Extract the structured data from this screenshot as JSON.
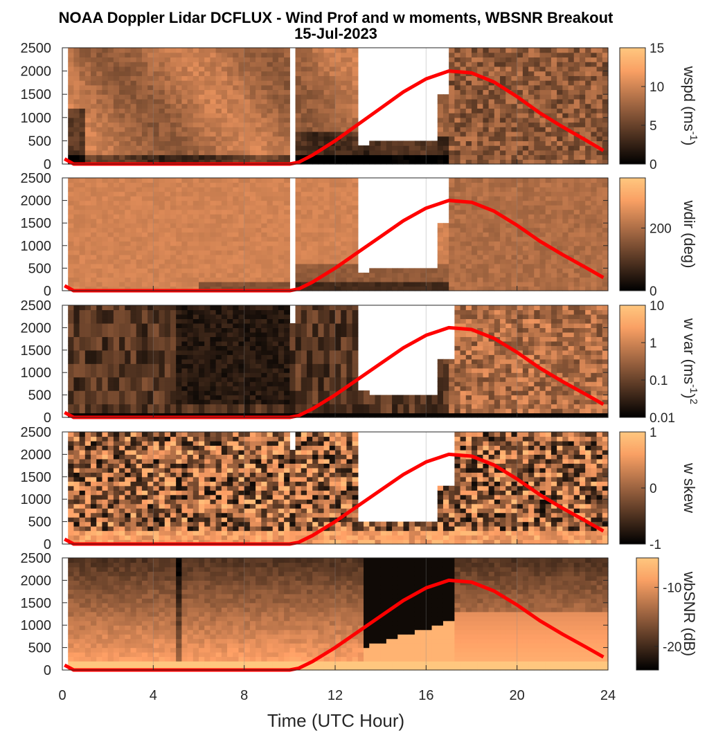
{
  "chart_data": {
    "type": "heatmap",
    "title": "NOAA Doppler Lidar DCFLUX - Wind Prof and w moments, WBSNR Breakout",
    "subtitle": "15-Jul-2023",
    "xlabel": "Time (UTC Hour)",
    "xlim": [
      0,
      24
    ],
    "xticks": [
      0,
      4,
      8,
      12,
      16,
      20,
      24
    ],
    "ylim": [
      0,
      2500
    ],
    "yticks": [
      0,
      500,
      1000,
      1500,
      2000,
      2500
    ],
    "grid": true,
    "colormap": "copper",
    "overlay_line": {
      "color": "#ff0000",
      "points": [
        [
          0.1,
          110
        ],
        [
          0.5,
          0
        ],
        [
          4,
          0
        ],
        [
          8,
          0
        ],
        [
          10,
          0
        ],
        [
          10.4,
          40
        ],
        [
          11,
          190
        ],
        [
          12,
          500
        ],
        [
          13,
          850
        ],
        [
          14,
          1200
        ],
        [
          15,
          1550
        ],
        [
          16,
          1830
        ],
        [
          17,
          2000
        ],
        [
          18,
          1960
        ],
        [
          19,
          1760
        ],
        [
          20,
          1450
        ],
        [
          21,
          1100
        ],
        [
          22,
          800
        ],
        [
          23,
          520
        ],
        [
          23.8,
          290
        ]
      ]
    },
    "panels": [
      {
        "id": "wspd",
        "colorbar_label": "wspd (ms-1)",
        "colorbar_label_base": "wspd (ms",
        "colorbar_label_sup": "-1",
        "colorbar_label_end": ")",
        "colorbar_ticks": [
          "0",
          "5",
          "10",
          "15"
        ],
        "colorbar_tick_values": [
          0,
          5,
          10,
          15
        ],
        "colorbar_range": [
          0,
          15
        ],
        "colorbar_scale": "linear",
        "blank_regions": [
          [
            10.0,
            10.3,
            0,
            2500
          ],
          [
            13.0,
            13.4,
            400,
            2500
          ],
          [
            13.4,
            16.4,
            550,
            2500
          ],
          [
            16.4,
            17.0,
            1500,
            2500
          ]
        ]
      },
      {
        "id": "wdir",
        "colorbar_label": "wdir (deg)",
        "colorbar_ticks": [
          "0",
          "200"
        ],
        "colorbar_tick_values": [
          0,
          200
        ],
        "colorbar_range": [
          0,
          360
        ],
        "colorbar_scale": "linear",
        "blank_regions": [
          [
            10.0,
            10.3,
            0,
            2500
          ],
          [
            13.0,
            13.4,
            400,
            2500
          ],
          [
            13.4,
            16.4,
            550,
            2500
          ],
          [
            16.4,
            17.0,
            1500,
            2500
          ]
        ]
      },
      {
        "id": "wvar",
        "colorbar_label": "w var (ms-1)2",
        "colorbar_label_base": "w var (ms",
        "colorbar_label_sup": "-1",
        "colorbar_label_end": ")",
        "colorbar_label_sup2": "2",
        "colorbar_ticks": [
          "0.01",
          "0.1",
          "1",
          "10"
        ],
        "colorbar_tick_values": [
          0.01,
          0.1,
          1,
          10
        ],
        "colorbar_range": [
          0.01,
          10
        ],
        "colorbar_scale": "log",
        "blank_regions": [
          [
            10.0,
            10.3,
            2100,
            2500
          ],
          [
            13.0,
            13.4,
            600,
            2500
          ],
          [
            13.4,
            16.4,
            500,
            2500
          ],
          [
            16.4,
            17.2,
            1300,
            2500
          ]
        ]
      },
      {
        "id": "wskew",
        "colorbar_label": "w skew",
        "colorbar_ticks": [
          "-1",
          "0",
          "1"
        ],
        "colorbar_tick_values": [
          -1,
          0,
          1
        ],
        "colorbar_range": [
          -1,
          1
        ],
        "colorbar_scale": "linear",
        "blank_regions": [
          [
            10.0,
            10.3,
            2100,
            2500
          ],
          [
            13.0,
            13.4,
            500,
            2500
          ],
          [
            13.4,
            16.4,
            500,
            2500
          ],
          [
            16.4,
            17.2,
            1300,
            2500
          ]
        ]
      },
      {
        "id": "wbsnr",
        "colorbar_label": "wbSNR (dB)",
        "colorbar_ticks": [
          "-20",
          "-10"
        ],
        "colorbar_tick_values": [
          -20,
          -10
        ],
        "colorbar_range": [
          -24,
          -5
        ],
        "colorbar_scale": "linear",
        "blank_regions": []
      }
    ]
  }
}
